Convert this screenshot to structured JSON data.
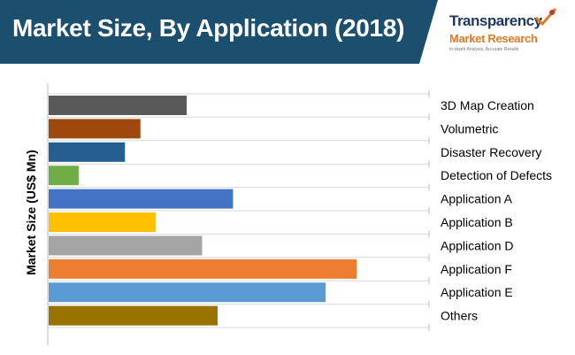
{
  "header": {
    "title": "Market Size, By Application (2018)",
    "banner_color": "#1c4f6e"
  },
  "logo": {
    "word1": "Transparency",
    "word2": "Market Research",
    "tagline": "In-depth Analysis. Accurate Results",
    "mark_icon": "check-swoosh-icon"
  },
  "chart_data": {
    "type": "bar",
    "orientation": "horizontal",
    "title": "Market Size, By Application (2018)",
    "ylabel": "Market Size (US$ Mn)",
    "xlabel": "",
    "xlim": [
      0,
      100
    ],
    "grid": true,
    "categories": [
      "3D Map Creation",
      "Volumetric",
      "Disaster Recovery",
      "Detection of Defects",
      "Application A",
      "Application B",
      "Application D",
      "Application F",
      "Application E",
      "Others"
    ],
    "values": [
      45,
      30,
      25,
      10,
      60,
      35,
      50,
      100,
      90,
      55
    ],
    "colors": [
      "#595959",
      "#9e480e",
      "#255e91",
      "#70ad47",
      "#4472c4",
      "#ffc000",
      "#a5a5a5",
      "#ed7d31",
      "#5b9bd5",
      "#997300"
    ]
  }
}
